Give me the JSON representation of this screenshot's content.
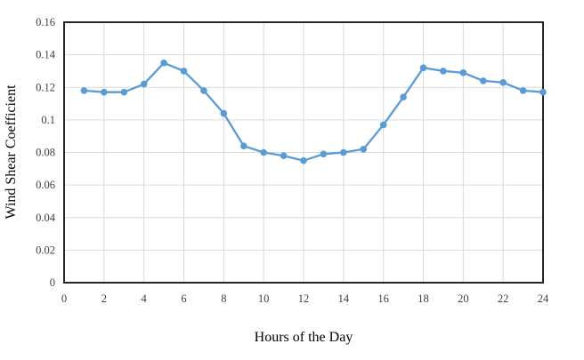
{
  "chart": {
    "colors": {
      "line": "#5B9BD5",
      "marker": "#5B9BD5",
      "grid": "#D9D9D9",
      "frame": "#262626",
      "tick_text": "#404040",
      "axis_title_text": "#000000",
      "background": "#FFFFFF"
    }
  },
  "chart_data": {
    "type": "line",
    "title": "",
    "xlabel": "Hours of the Day",
    "ylabel": "Wind Shear Coefficient",
    "series": [
      {
        "name": "Wind Shear Coefficient",
        "x": [
          1,
          2,
          3,
          4,
          5,
          6,
          7,
          8,
          9,
          10,
          11,
          12,
          13,
          14,
          15,
          16,
          17,
          18,
          19,
          20,
          21,
          22,
          23,
          24
        ],
        "values": [
          0.118,
          0.117,
          0.117,
          0.122,
          0.135,
          0.13,
          0.118,
          0.104,
          0.084,
          0.08,
          0.078,
          0.075,
          0.079,
          0.08,
          0.082,
          0.097,
          0.114,
          0.132,
          0.13,
          0.129,
          0.124,
          0.123,
          0.118,
          0.117
        ]
      }
    ],
    "xlim": [
      0,
      24
    ],
    "ylim": [
      0,
      0.16
    ],
    "x_ticks": [
      0,
      2,
      4,
      6,
      8,
      10,
      12,
      14,
      16,
      18,
      20,
      22,
      24
    ],
    "x_tick_labels": [
      "0",
      "2",
      "4",
      "6",
      "8",
      "10",
      "12",
      "14",
      "16",
      "18",
      "20",
      "22",
      "24"
    ],
    "y_ticks": [
      0,
      0.02,
      0.04,
      0.06,
      0.08,
      0.1,
      0.12,
      0.14,
      0.16
    ],
    "y_tick_labels": [
      "0",
      "0.02",
      "0.04",
      "0.06",
      "0.08",
      "0.1",
      "0.12",
      "0.14",
      "0.16"
    ],
    "grid": true,
    "legend": "none",
    "marker": "circle"
  }
}
